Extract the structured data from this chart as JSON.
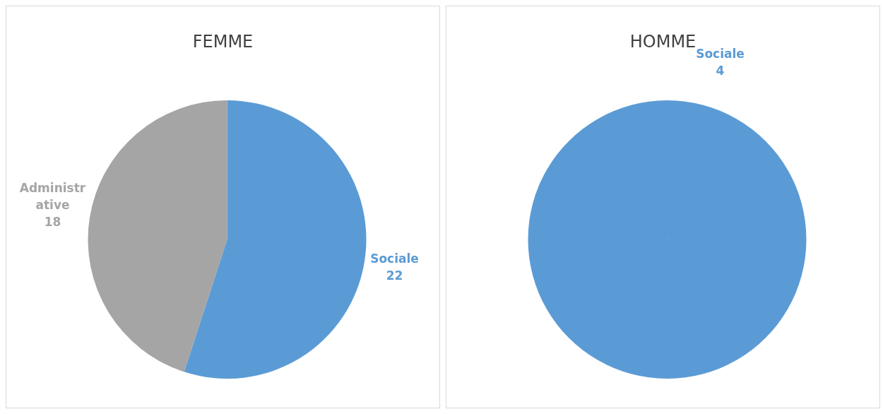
{
  "chart_data": [
    {
      "type": "pie",
      "title": "FEMME",
      "categories": [
        "Sociale",
        "Administrative"
      ],
      "values": [
        22,
        18
      ],
      "colors": [
        "#5b9bd5",
        "#a5a5a5"
      ],
      "data_labels": true
    },
    {
      "type": "pie",
      "title": "HOMME",
      "categories": [
        "Sociale"
      ],
      "values": [
        4
      ],
      "colors": [
        "#5b9bd5"
      ],
      "data_labels": true
    }
  ]
}
